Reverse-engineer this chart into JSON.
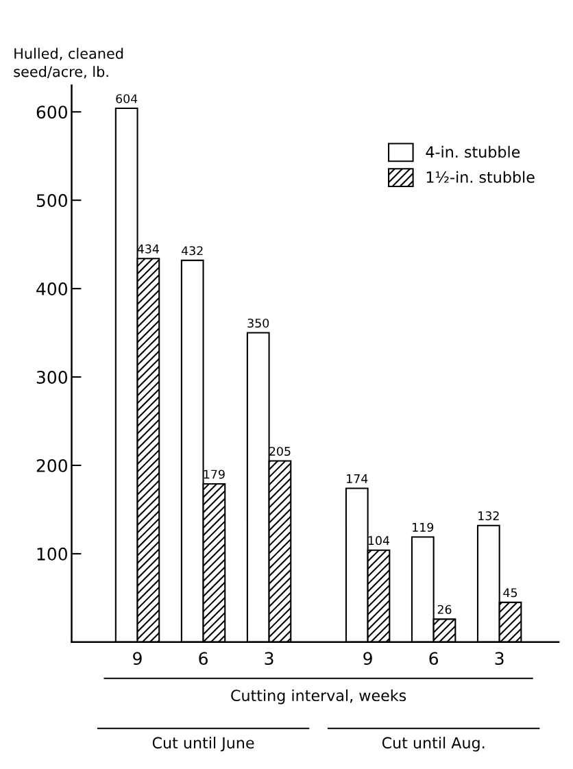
{
  "chart_data": {
    "type": "bar",
    "ylabel": "Hulled, cleaned\nseed/acre, lb.",
    "xlabel": "Cutting interval, weeks",
    "categories": [
      "9",
      "6",
      "3",
      "9",
      "6",
      "3"
    ],
    "series": [
      {
        "name": "4-in. stubble",
        "color": "#ffffff",
        "values": [
          604,
          432,
          350,
          174,
          119,
          132
        ]
      },
      {
        "name": "1½-in. stubble",
        "color": "#000000",
        "values": [
          434,
          179,
          205,
          104,
          26,
          45
        ]
      }
    ],
    "ylim": [
      0,
      630
    ],
    "yticks": [
      100,
      200,
      300,
      400,
      500,
      600
    ],
    "data_labels": true,
    "legend": "top right",
    "grid": false,
    "annotations": [
      "Cut until June",
      "Cut until Aug."
    ]
  }
}
